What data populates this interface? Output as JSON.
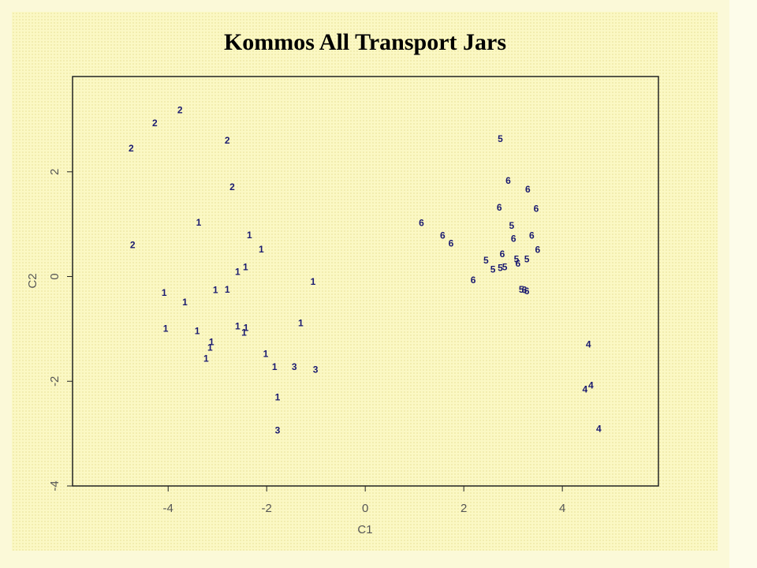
{
  "chart_data": {
    "type": "scatter",
    "title": "Kommos All Transport Jars",
    "x_label": "C1",
    "y_label": "C2",
    "xlim": [
      -5.94,
      5.95
    ],
    "ylim": [
      -4.0,
      3.82
    ],
    "xticks": [
      -4,
      -2,
      0,
      2,
      4
    ],
    "yticks": [
      -4,
      -2,
      0,
      2
    ],
    "series": [
      {
        "name": "1",
        "color": "#1a1a70",
        "x": [
          -3.38,
          -2.35,
          -2.11,
          -2.43,
          -2.59,
          -1.06,
          -4.08,
          -3.66,
          -3.04,
          -2.8,
          -4.05,
          -3.41,
          -2.59,
          -2.42,
          -2.46,
          -1.31,
          -3.12,
          -3.15,
          -3.23,
          -2.02,
          -1.84,
          -1.78
        ],
        "values": [
          1.02,
          0.78,
          0.51,
          0.17,
          0.08,
          -0.11,
          -0.32,
          -0.5,
          -0.27,
          -0.26,
          -1.01,
          -1.05,
          -0.96,
          -0.99,
          -1.08,
          -0.9,
          -1.26,
          -1.37,
          -1.58,
          -1.49,
          -1.74,
          -2.32
        ]
      },
      {
        "name": "2",
        "color": "#1a1a70",
        "x": [
          -3.76,
          -4.27,
          -4.75,
          -2.8,
          -2.7,
          -4.72
        ],
        "values": [
          3.17,
          2.92,
          2.44,
          2.59,
          1.7,
          0.59
        ]
      },
      {
        "name": "3",
        "color": "#1a1a70",
        "x": [
          -1.44,
          -1.01,
          -1.78
        ],
        "values": [
          -1.74,
          -1.79,
          -2.95
        ]
      },
      {
        "name": "4",
        "color": "#1a1a70",
        "x": [
          4.53,
          4.58,
          4.46,
          4.74
        ],
        "values": [
          -1.31,
          -2.09,
          -2.17,
          -2.92
        ]
      },
      {
        "name": "5",
        "color": "#1a1a70",
        "x": [
          2.74,
          2.97,
          2.45,
          2.59,
          2.74,
          2.83,
          3.07,
          3.28,
          3.17
        ],
        "values": [
          2.62,
          0.96,
          0.3,
          0.12,
          0.15,
          0.17,
          0.32,
          0.32,
          -0.26
        ]
      },
      {
        "name": "6",
        "color": "#1a1a70",
        "x": [
          2.9,
          3.3,
          3.47,
          2.72,
          1.14,
          1.57,
          1.74,
          3.01,
          3.38,
          3.5,
          2.78,
          3.1,
          2.19,
          3.23,
          3.28
        ],
        "values": [
          1.82,
          1.65,
          1.28,
          1.31,
          1.01,
          0.77,
          0.62,
          0.71,
          0.77,
          0.5,
          0.42,
          0.24,
          -0.08,
          -0.27,
          -0.29
        ]
      }
    ]
  }
}
